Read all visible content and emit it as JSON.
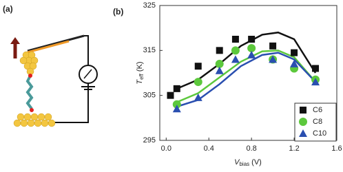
{
  "panel_labels": [
    "(a)",
    "(b)"
  ],
  "chart_data": {
    "type": "scatter",
    "xlabel": {
      "main": "V",
      "sub": "bias",
      "unit": "(V)"
    },
    "ylabel": {
      "main": "T",
      "sub": "eff",
      "unit": "(K)"
    },
    "xlim": [
      -0.06,
      1.6
    ],
    "ylim": [
      295,
      325
    ],
    "xticks": [
      {
        "value": 0,
        "label": "0.0"
      },
      0.4,
      0.8,
      1.2,
      1.6
    ],
    "yticks": [
      295,
      305,
      315,
      325
    ],
    "legend": "lower right",
    "fit_x": [
      0.1,
      0.3,
      0.5,
      0.7,
      0.9,
      1.05,
      1.2,
      1.4
    ],
    "series": [
      {
        "name": "C6",
        "color": "#111111",
        "marker": "square",
        "x": [
          0.04,
          0.1,
          0.3,
          0.5,
          0.65,
          0.8,
          1.0,
          1.2,
          1.4
        ],
        "values": [
          305,
          306.5,
          311.5,
          315,
          317.5,
          317.5,
          316,
          314.5,
          311
        ],
        "fit": [
          306.5,
          308.5,
          312,
          316,
          318.5,
          319,
          317.5,
          310
        ]
      },
      {
        "name": "C8",
        "color": "#5cc83c",
        "marker": "circle",
        "x": [
          0.1,
          0.3,
          0.5,
          0.65,
          0.8,
          1.0,
          1.2,
          1.4
        ],
        "values": [
          303,
          308,
          312,
          315,
          315.5,
          313,
          311,
          308.5
        ],
        "fit": [
          303.5,
          305.5,
          309,
          312.5,
          314.8,
          315,
          313.5,
          308
        ]
      },
      {
        "name": "C10",
        "color": "#2a4fb0",
        "marker": "triangle",
        "x": [
          0.1,
          0.3,
          0.5,
          0.65,
          0.8,
          1.0,
          1.2,
          1.4
        ],
        "values": [
          302,
          304.5,
          310.5,
          313,
          314,
          313,
          312,
          308
        ],
        "fit": [
          302.5,
          304,
          307.5,
          311.5,
          314,
          314.5,
          313,
          308
        ]
      }
    ]
  }
}
